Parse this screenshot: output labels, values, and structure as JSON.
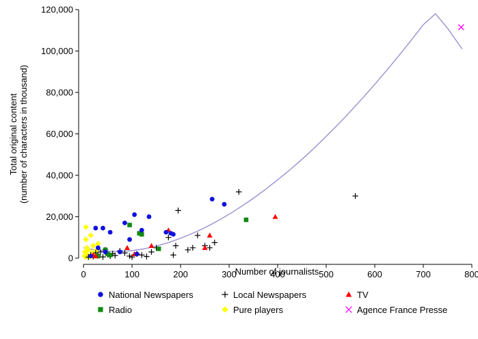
{
  "chart_data": {
    "type": "scatter",
    "xlabel": "Number of journalists",
    "ylabel_lines": [
      "Total original content",
      "(number of characters in thousand)"
    ],
    "xlim": [
      -10,
      800
    ],
    "ylim": [
      -3000,
      122000
    ],
    "x_ticks": [
      0,
      100,
      200,
      300,
      400,
      500,
      600,
      700,
      800
    ],
    "y_ticks": [
      0,
      20000,
      40000,
      60000,
      80000,
      100000,
      120000
    ],
    "x_tick_labels": [
      "0",
      "100",
      "200",
      "300",
      "400",
      "500",
      "600",
      "700",
      "800"
    ],
    "y_tick_labels": [
      "0",
      "20,000",
      "40,000",
      "60,000",
      "80,000",
      "100,000",
      "120,000"
    ],
    "grid": false,
    "legend_position": "bottom",
    "colors": {
      "national": "#1010e0",
      "local": "#000000",
      "tv": "#ff0000",
      "radio": "#138a13",
      "pure": "#ffff00",
      "afp": "#ff00ff",
      "fit": "#9a8fcf"
    },
    "series": [
      {
        "name": "National Newspapers",
        "marker": "circle",
        "color_key": "national",
        "x": [
          15,
          25,
          30,
          40,
          45,
          55,
          75,
          85,
          95,
          105,
          110,
          120,
          135,
          170,
          180,
          185,
          265,
          290
        ],
        "y": [
          1000,
          14500,
          5000,
          14500,
          3000,
          12500,
          3000,
          17000,
          9000,
          21000,
          2000,
          13500,
          20000,
          12500,
          12000,
          11500,
          28500,
          26000
        ]
      },
      {
        "name": "Local Newspapers",
        "marker": "plus",
        "color_key": "local",
        "x": [
          10,
          15,
          20,
          25,
          30,
          35,
          40,
          45,
          50,
          55,
          60,
          65,
          75,
          85,
          95,
          100,
          110,
          120,
          130,
          140,
          150,
          175,
          185,
          190,
          195,
          215,
          225,
          235,
          250,
          260,
          270,
          320,
          560
        ],
        "y": [
          500,
          1500,
          800,
          2500,
          1200,
          3000,
          600,
          4000,
          1800,
          1000,
          2200,
          1300,
          3500,
          2500,
          1000,
          500,
          2000,
          1500,
          800,
          3000,
          5000,
          10000,
          1500,
          6000,
          23000,
          4000,
          5000,
          11000,
          6000,
          5000,
          7500,
          32000,
          30000
        ]
      },
      {
        "name": "TV",
        "marker": "triangle",
        "color_key": "tv",
        "x": [
          20,
          25,
          90,
          105,
          140,
          175,
          250,
          260,
          395
        ],
        "y": [
          1500,
          1000,
          5000,
          2000,
          6000,
          13500,
          5000,
          11000,
          20000
        ]
      },
      {
        "name": "Radio",
        "marker": "square",
        "color_key": "radio",
        "x": [
          30,
          45,
          50,
          55,
          95,
          115,
          120,
          155,
          335
        ],
        "y": [
          1000,
          4000,
          2000,
          1500,
          16000,
          12000,
          11500,
          4500,
          18500
        ]
      },
      {
        "name": "Pure players",
        "marker": "diamond",
        "color_key": "pure",
        "x": [
          2,
          3,
          4,
          5,
          5,
          6,
          7,
          8,
          10,
          12,
          15,
          18,
          20,
          22,
          25,
          30
        ],
        "y": [
          1000,
          3000,
          500,
          9000,
          15000,
          2000,
          5000,
          1500,
          4000,
          500,
          11000,
          2500,
          6000,
          1000,
          3500,
          7000
        ]
      },
      {
        "name": "Agence France Presse",
        "marker": "x",
        "color_key": "afp",
        "x": [
          778
        ],
        "y": [
          111500
        ]
      }
    ],
    "fit_curve": {
      "x": [
        0,
        25,
        50,
        75,
        100,
        125,
        150,
        175,
        200,
        225,
        250,
        275,
        300,
        325,
        350,
        375,
        400,
        425,
        450,
        475,
        500,
        525,
        550,
        575,
        600,
        625,
        650,
        675,
        700,
        725,
        750,
        780
      ],
      "y": [
        5000,
        3900,
        3300,
        3200,
        3600,
        4500,
        5800,
        7500,
        9600,
        12000,
        14700,
        17800,
        21200,
        24900,
        28900,
        33200,
        37800,
        42600,
        47700,
        53100,
        58800,
        64700,
        70900,
        77300,
        83900,
        90800,
        97900,
        105200,
        112700,
        118000,
        111000,
        101000
      ]
    }
  }
}
